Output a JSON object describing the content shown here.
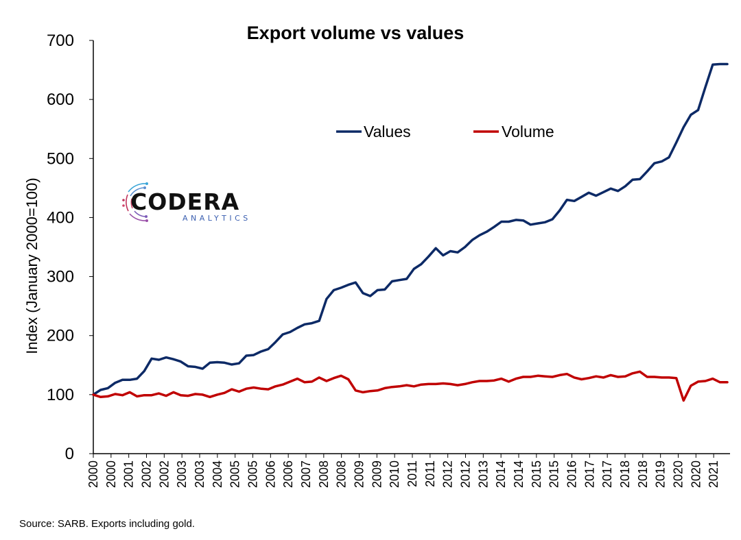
{
  "chart_data": {
    "type": "line",
    "title": "Export volume vs values",
    "ylabel": "Index (January 2000=100)",
    "ylim": [
      0,
      700
    ],
    "yticks": [
      0,
      100,
      200,
      300,
      400,
      500,
      600,
      700
    ],
    "x_tick_labels": [
      "2000",
      "2000",
      "2001",
      "2002",
      "2002",
      "2003",
      "2003",
      "2004",
      "2005",
      "2005",
      "2006",
      "2006",
      "2007",
      "2008",
      "2008",
      "2009",
      "2009",
      "2010",
      "2011",
      "2011",
      "2012",
      "2012",
      "2013",
      "2014",
      "2014",
      "2015",
      "2015",
      "2016",
      "2017",
      "2017",
      "2018",
      "2018",
      "2019",
      "2020",
      "2020",
      "2021"
    ],
    "x_start": 2000.0,
    "x_end": 2021.75,
    "grid": false,
    "legend_position": "top-center",
    "series": [
      {
        "name": "Values",
        "color": "#0d2a66",
        "x": [
          2000.0,
          2000.25,
          2000.5,
          2000.75,
          2001.0,
          2001.25,
          2001.5,
          2001.75,
          2002.0,
          2002.25,
          2002.5,
          2002.75,
          2003.0,
          2003.25,
          2003.5,
          2003.75,
          2004.0,
          2004.25,
          2004.5,
          2004.75,
          2005.0,
          2005.25,
          2005.5,
          2005.75,
          2006.0,
          2006.25,
          2006.5,
          2006.75,
          2007.0,
          2007.25,
          2007.5,
          2007.75,
          2008.0,
          2008.25,
          2008.5,
          2008.75,
          2009.0,
          2009.25,
          2009.5,
          2009.75,
          2010.0,
          2010.25,
          2010.5,
          2010.75,
          2011.0,
          2011.25,
          2011.5,
          2011.75,
          2012.0,
          2012.25,
          2012.5,
          2012.75,
          2013.0,
          2013.25,
          2013.5,
          2013.75,
          2014.0,
          2014.25,
          2014.5,
          2014.75,
          2015.0,
          2015.25,
          2015.5,
          2015.75,
          2016.0,
          2016.25,
          2016.5,
          2016.75,
          2017.0,
          2017.25,
          2017.5,
          2017.75,
          2018.0,
          2018.25,
          2018.5,
          2018.75,
          2019.0,
          2019.25,
          2019.5,
          2019.75,
          2020.0,
          2020.25,
          2020.5,
          2020.75,
          2021.0,
          2021.25,
          2021.5,
          2021.75
        ],
        "values": [
          100,
          108,
          111,
          120,
          125,
          125,
          127,
          140,
          161,
          159,
          163,
          160,
          156,
          148,
          147,
          144,
          154,
          155,
          154,
          151,
          153,
          166,
          167,
          173,
          177,
          189,
          202,
          206,
          213,
          219,
          221,
          225,
          262,
          277,
          281,
          286,
          290,
          272,
          267,
          277,
          278,
          292,
          294,
          296,
          313,
          321,
          334,
          348,
          336,
          343,
          341,
          350,
          362,
          370,
          376,
          384,
          393,
          393,
          396,
          395,
          388,
          390,
          392,
          397,
          412,
          430,
          428,
          435,
          442,
          437,
          443,
          449,
          445,
          453,
          464,
          465,
          478,
          492,
          495,
          502,
          527,
          553,
          574,
          582,
          621,
          659,
          660,
          660
        ]
      },
      {
        "name": "Volume",
        "color": "#c00000",
        "x": [
          2000.0,
          2000.25,
          2000.5,
          2000.75,
          2001.0,
          2001.25,
          2001.5,
          2001.75,
          2002.0,
          2002.25,
          2002.5,
          2002.75,
          2003.0,
          2003.25,
          2003.5,
          2003.75,
          2004.0,
          2004.25,
          2004.5,
          2004.75,
          2005.0,
          2005.25,
          2005.5,
          2005.75,
          2006.0,
          2006.25,
          2006.5,
          2006.75,
          2007.0,
          2007.25,
          2007.5,
          2007.75,
          2008.0,
          2008.25,
          2008.5,
          2008.75,
          2009.0,
          2009.25,
          2009.5,
          2009.75,
          2010.0,
          2010.25,
          2010.5,
          2010.75,
          2011.0,
          2011.25,
          2011.5,
          2011.75,
          2012.0,
          2012.25,
          2012.5,
          2012.75,
          2013.0,
          2013.25,
          2013.5,
          2013.75,
          2014.0,
          2014.25,
          2014.5,
          2014.75,
          2015.0,
          2015.25,
          2015.5,
          2015.75,
          2016.0,
          2016.25,
          2016.5,
          2016.75,
          2017.0,
          2017.25,
          2017.5,
          2017.75,
          2018.0,
          2018.25,
          2018.5,
          2018.75,
          2019.0,
          2019.25,
          2019.5,
          2019.75,
          2020.0,
          2020.25,
          2020.5,
          2020.75,
          2021.0,
          2021.25,
          2021.5,
          2021.75
        ],
        "values": [
          100,
          96,
          97,
          101,
          99,
          104,
          97,
          99,
          99,
          102,
          98,
          104,
          99,
          98,
          101,
          100,
          96,
          100,
          103,
          109,
          105,
          110,
          112,
          110,
          109,
          114,
          117,
          122,
          127,
          121,
          122,
          129,
          123,
          128,
          132,
          126,
          107,
          104,
          106,
          107,
          111,
          113,
          114,
          116,
          114,
          117,
          118,
          118,
          119,
          118,
          116,
          118,
          121,
          123,
          123,
          124,
          127,
          122,
          127,
          130,
          130,
          132,
          131,
          130,
          133,
          135,
          129,
          126,
          128,
          131,
          129,
          133,
          130,
          131,
          136,
          139,
          130,
          130,
          129,
          129,
          128,
          90,
          115,
          122,
          123,
          127,
          121,
          121
        ]
      }
    ]
  },
  "logo": {
    "main": "CODERA",
    "sub": "ANALYTICS"
  },
  "source_note": "Source: SARB. Exports including gold."
}
